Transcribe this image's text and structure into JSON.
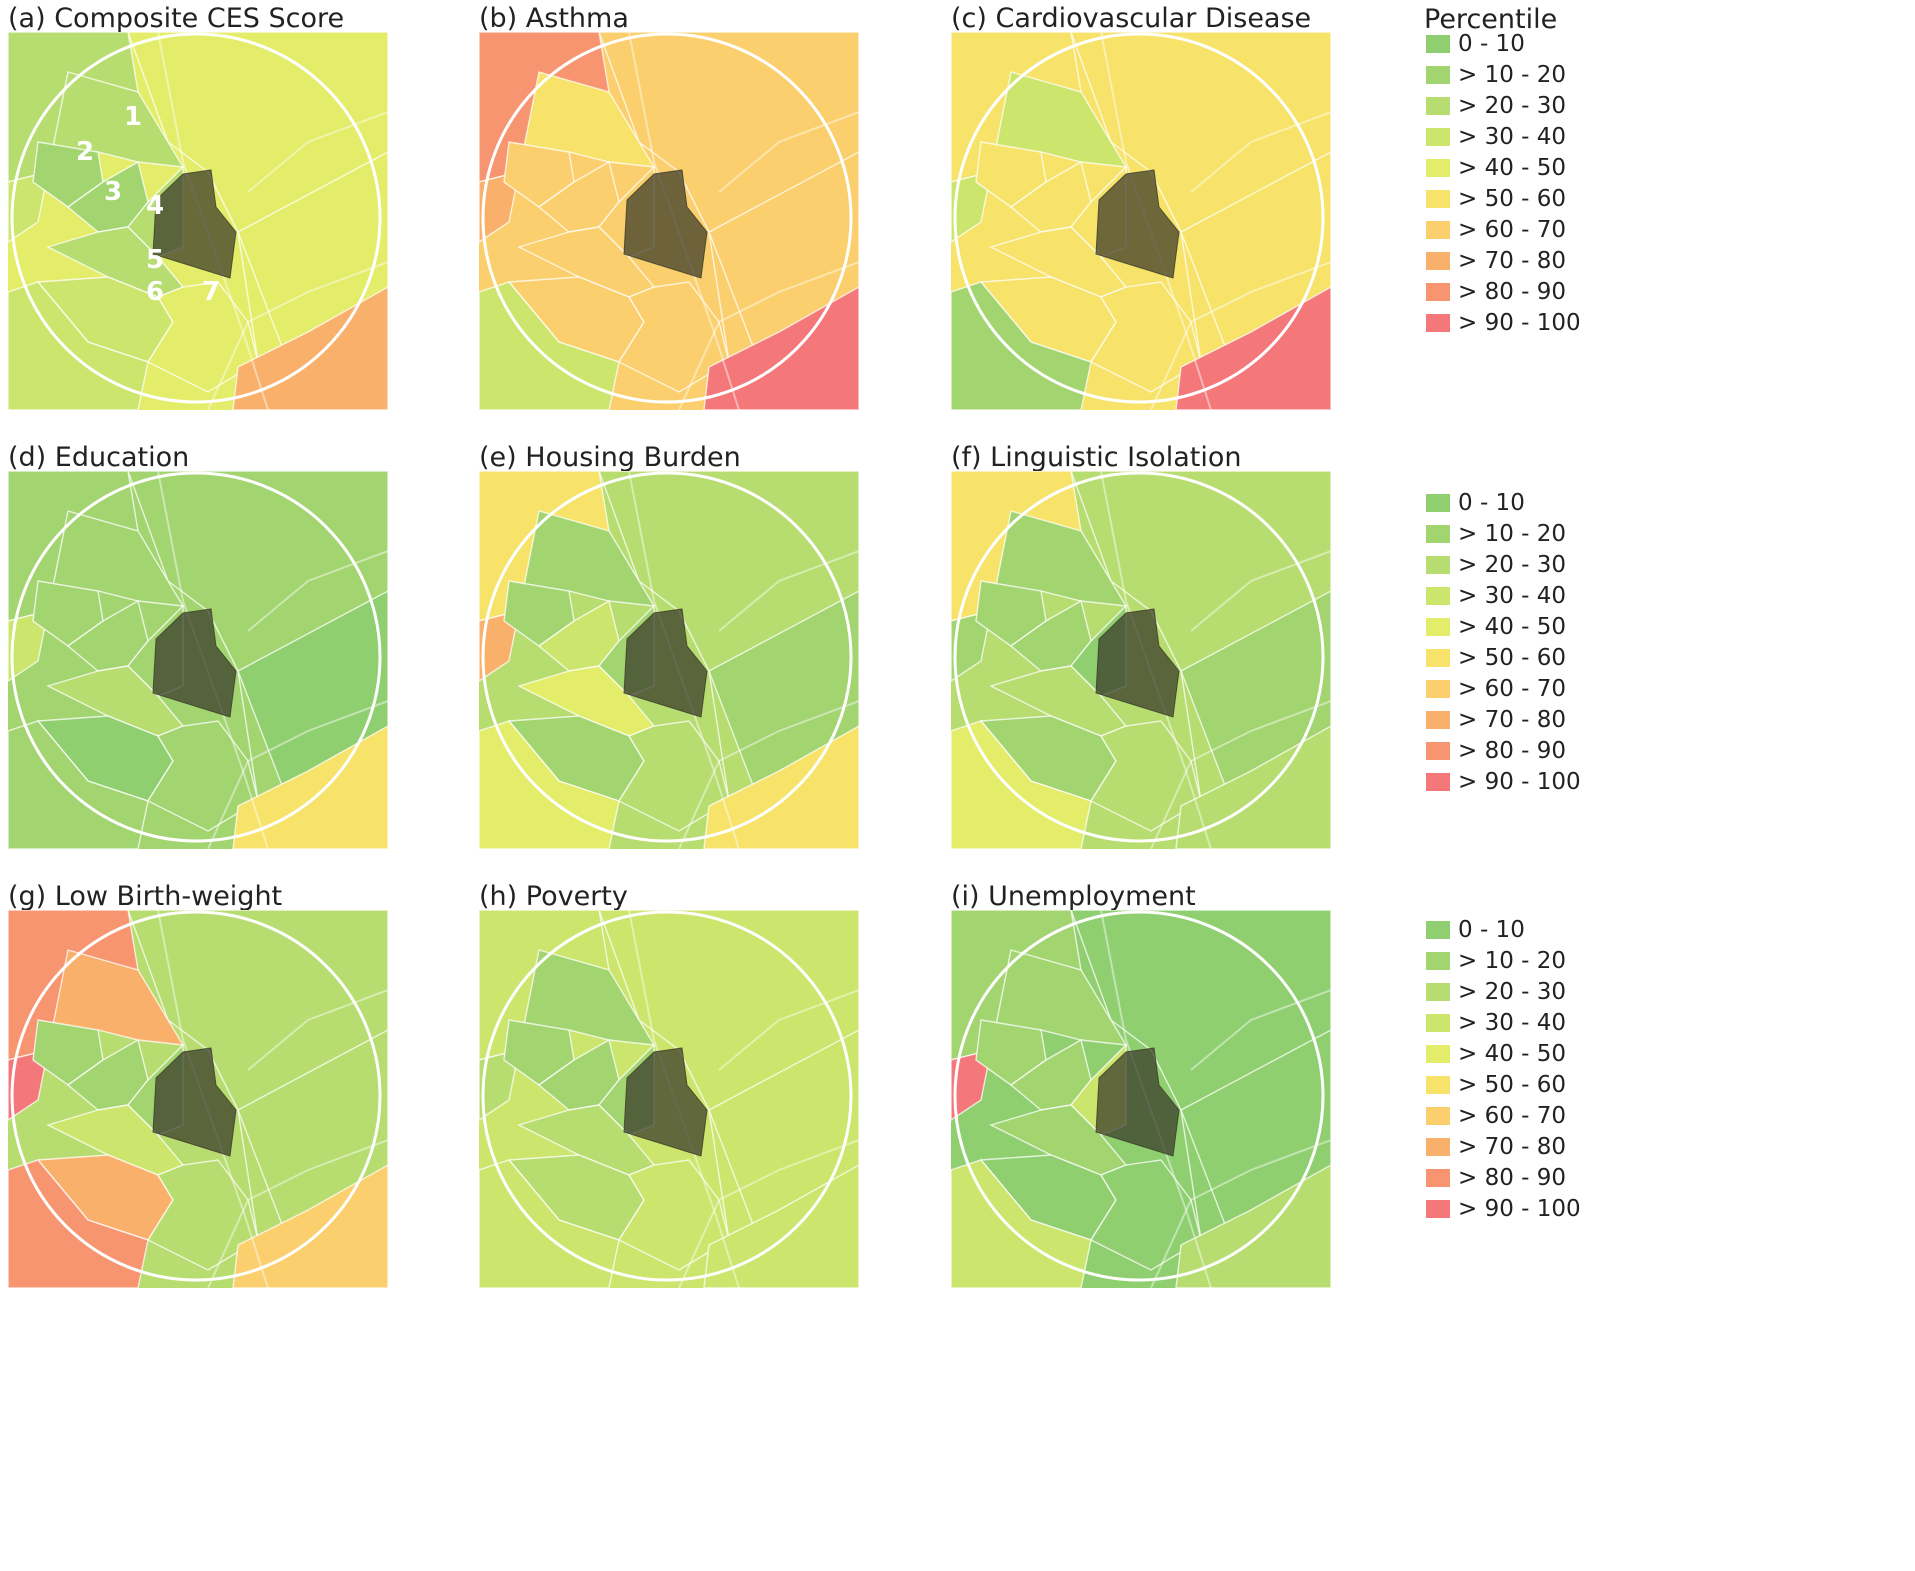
{
  "legend_title": "Percentile",
  "legend_items": [
    {
      "label": "0 - 10",
      "color": "#8fcf6f"
    },
    {
      "label": "> 10 - 20",
      "color": "#a2d470"
    },
    {
      "label": "> 20 - 30",
      "color": "#b7dc6f"
    },
    {
      "label": "> 30 - 40",
      "color": "#cce56c"
    },
    {
      "label": "> 40 - 50",
      "color": "#e4ed6a"
    },
    {
      "label": "> 50 - 60",
      "color": "#f7e36a"
    },
    {
      "label": "> 60 - 70",
      "color": "#fbcf6d"
    },
    {
      "label": "> 70 - 80",
      "color": "#f9b06a"
    },
    {
      "label": "> 80 - 90",
      "color": "#f79570"
    },
    {
      "label": "> 90 - 100",
      "color": "#f4787a"
    }
  ],
  "map_labels": {
    "a": [
      "1",
      "2",
      "3",
      "4",
      "5",
      "6",
      "7"
    ]
  },
  "panels": [
    {
      "id": "a",
      "title": "(a) Composite CES Score",
      "colors": {
        "bg": "#e4ed6a",
        "nw": "#b7dc6f",
        "n1": "#b7dc6f",
        "t2": "#a2d470",
        "t3": "#a2d470",
        "t4": "#b7dc6f",
        "t5": "#b7dc6f",
        "t6": "#cce56c",
        "t7": "#e4ed6a",
        "sw": "#cce56c",
        "se": "#f9b06a",
        "e": "#e4ed6a",
        "ne": "#e4ed6a",
        "w": "#cce56c"
      }
    },
    {
      "id": "b",
      "title": "(b) Asthma",
      "colors": {
        "bg": "#fbcf6d",
        "nw": "#f79570",
        "n1": "#f7e36a",
        "t2": "#fbcf6d",
        "t3": "#fbcf6d",
        "t4": "#fbcf6d",
        "t5": "#fbcf6d",
        "t6": "#fbcf6d",
        "t7": "#fbcf6d",
        "sw": "#cce56c",
        "se": "#f4787a",
        "e": "#fbcf6d",
        "ne": "#fbcf6d",
        "w": "#f9b06a"
      }
    },
    {
      "id": "c",
      "title": "(c) Cardiovascular Disease",
      "colors": {
        "bg": "#f7e36a",
        "nw": "#f7e36a",
        "n1": "#cce56c",
        "t2": "#f7e36a",
        "t3": "#f7e36a",
        "t4": "#f7e36a",
        "t5": "#f7e36a",
        "t6": "#f7e36a",
        "t7": "#f7e36a",
        "sw": "#a2d470",
        "se": "#f4787a",
        "e": "#f7e36a",
        "ne": "#f7e36a",
        "w": "#cce56c"
      }
    },
    {
      "id": "d",
      "title": "(d) Education",
      "colors": {
        "bg": "#a2d470",
        "nw": "#a2d470",
        "n1": "#a2d470",
        "t2": "#a2d470",
        "t3": "#a2d470",
        "t4": "#a2d470",
        "t5": "#b7dc6f",
        "t6": "#8fcf6f",
        "t7": "#a2d470",
        "sw": "#a2d470",
        "se": "#f7e36a",
        "e": "#8fcf6f",
        "ne": "#a2d470",
        "w": "#cce56c"
      }
    },
    {
      "id": "e",
      "title": "(e) Housing Burden",
      "colors": {
        "bg": "#b7dc6f",
        "nw": "#f7e36a",
        "n1": "#a2d470",
        "t2": "#a2d470",
        "t3": "#cce56c",
        "t4": "#a2d470",
        "t5": "#e4ed6a",
        "t6": "#a2d470",
        "t7": "#b7dc6f",
        "sw": "#e4ed6a",
        "se": "#f7e36a",
        "e": "#a2d470",
        "ne": "#b7dc6f",
        "w": "#f9b06a"
      }
    },
    {
      "id": "f",
      "title": "(f) Linguistic Isolation",
      "colors": {
        "bg": "#b7dc6f",
        "nw": "#f7e36a",
        "n1": "#a2d470",
        "t2": "#a2d470",
        "t3": "#a2d470",
        "t4": "#8fcf6f",
        "t5": "#b7dc6f",
        "t6": "#a2d470",
        "t7": "#b7dc6f",
        "sw": "#e4ed6a",
        "se": "#b7dc6f",
        "e": "#a2d470",
        "ne": "#b7dc6f",
        "w": "#a2d470"
      }
    },
    {
      "id": "g",
      "title": "(g) Low Birth-weight",
      "colors": {
        "bg": "#b7dc6f",
        "nw": "#f79570",
        "n1": "#f9b06a",
        "t2": "#a2d470",
        "t3": "#a2d470",
        "t4": "#a2d470",
        "t5": "#cce56c",
        "t6": "#f9b06a",
        "t7": "#b7dc6f",
        "sw": "#f79570",
        "se": "#fbcf6d",
        "e": "#b7dc6f",
        "ne": "#b7dc6f",
        "w": "#f4787a"
      }
    },
    {
      "id": "h",
      "title": "(h) Poverty",
      "colors": {
        "bg": "#cce56c",
        "nw": "#cce56c",
        "n1": "#a2d470",
        "t2": "#a2d470",
        "t3": "#a2d470",
        "t4": "#a2d470",
        "t5": "#b7dc6f",
        "t6": "#b7dc6f",
        "t7": "#cce56c",
        "sw": "#cce56c",
        "se": "#cce56c",
        "e": "#cce56c",
        "ne": "#cce56c",
        "w": "#b7dc6f"
      }
    },
    {
      "id": "i",
      "title": "(i) Unemployment",
      "colors": {
        "bg": "#8fcf6f",
        "nw": "#a2d470",
        "n1": "#a2d470",
        "t2": "#a2d470",
        "t3": "#a2d470",
        "t4": "#cce56c",
        "t5": "#a2d470",
        "t6": "#8fcf6f",
        "t7": "#8fcf6f",
        "sw": "#cce56c",
        "se": "#b7dc6f",
        "e": "#8fcf6f",
        "ne": "#8fcf6f",
        "w": "#f4787a"
      }
    }
  ]
}
